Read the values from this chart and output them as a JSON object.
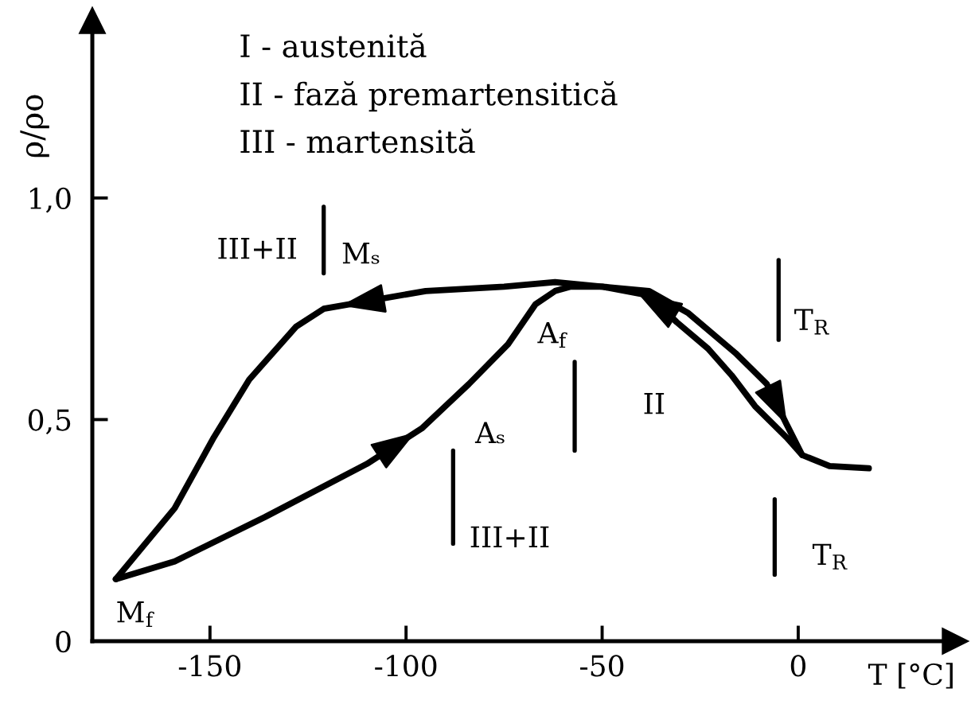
{
  "chart_data": {
    "type": "line",
    "xlabel": "T [°C]",
    "ylabel": "ρ/ρo",
    "xlim": [
      -180,
      40
    ],
    "xticks": [
      -150,
      -100,
      -50,
      0
    ],
    "ylim": [
      0,
      1.4
    ],
    "yticks": [
      0,
      {
        "value": 0.5,
        "label": "0,5"
      },
      {
        "value": 1,
        "label": "1,0"
      }
    ],
    "marker": "none",
    "line_style": "solid",
    "series": [
      {
        "color": "#000000",
        "x": [
          1,
          -3,
          -11,
          -17,
          -23,
          -31,
          -38,
          -50,
          -62,
          -75,
          -95,
          -121,
          -128,
          -140,
          -149,
          -159,
          -174
        ],
        "values": [
          0.42,
          0.46,
          0.53,
          0.6,
          0.66,
          0.72,
          0.78,
          0.8,
          0.81,
          0.8,
          0.79,
          0.75,
          0.71,
          0.59,
          0.46,
          0.3,
          0.14
        ]
      },
      {
        "color": "#000000",
        "x": [
          -174,
          -159,
          -136,
          -110,
          -96,
          -84,
          -74,
          -67,
          -62,
          -58,
          -50,
          -38,
          -28,
          -16,
          -8,
          -3,
          1,
          8,
          18
        ],
        "values": [
          0.14,
          0.18,
          0.28,
          0.4,
          0.48,
          0.58,
          0.67,
          0.76,
          0.79,
          0.8,
          0.8,
          0.79,
          0.74,
          0.65,
          0.58,
          0.49,
          0.42,
          0.395,
          0.39
        ]
      },
      {
        "color": "#000000",
        "x": [
          -121,
          -121
        ],
        "values": [
          0.83,
          0.98
        ]
      },
      {
        "color": "#000000",
        "x": [
          -88,
          -88
        ],
        "values": [
          0.22,
          0.43
        ]
      },
      {
        "color": "#000000",
        "x": [
          -57,
          -57
        ],
        "values": [
          0.43,
          0.63
        ]
      },
      {
        "color": "#000000",
        "x": [
          -5,
          -5
        ],
        "values": [
          0.68,
          0.86
        ]
      },
      {
        "color": "#000000",
        "x": [
          -6,
          -6
        ],
        "values": [
          0.15,
          0.32
        ]
      }
    ],
    "annotations": [
      "I - austenită",
      "II - fază premartensitică",
      "III - martensită",
      "III+II",
      "II",
      "III+II",
      {
        "text": "Mₛ",
        "x": -121,
        "y": 0.87
      },
      {
        "text": "A$_{f}$",
        "x": -58,
        "y": 0.8
      },
      {
        "text": "Aₛ",
        "x": -88,
        "y": 0.43
      },
      {
        "text": "T$_{R}$",
        "x": -5,
        "y": 0.72
      },
      {
        "text": "T$_{R}$",
        "x": -6,
        "y": 0.19
      },
      {
        "text": "M$_{f}$",
        "x": -174,
        "y": 0.14
      }
    ]
  }
}
